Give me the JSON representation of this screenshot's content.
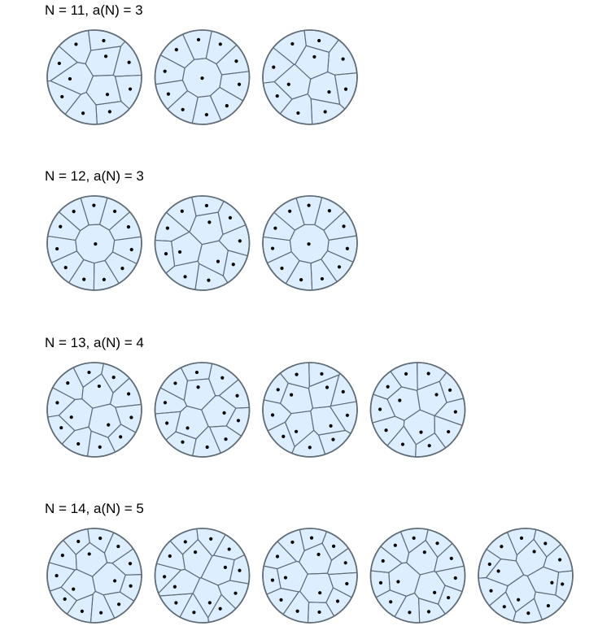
{
  "colors": {
    "cell_fill": "#dceeff",
    "edge": "#5f6b75",
    "point": "#000000"
  },
  "rows": [
    {
      "label": "N = 11, a(N) = 3",
      "n": 11,
      "count": 3
    },
    {
      "label": "N = 12, a(N) = 3",
      "n": 12,
      "count": 3
    },
    {
      "label": "N = 13, a(N) = 4",
      "n": 13,
      "count": 4
    },
    {
      "label": "N = 14, a(N) = 5",
      "n": 14,
      "count": 5
    }
  ]
}
